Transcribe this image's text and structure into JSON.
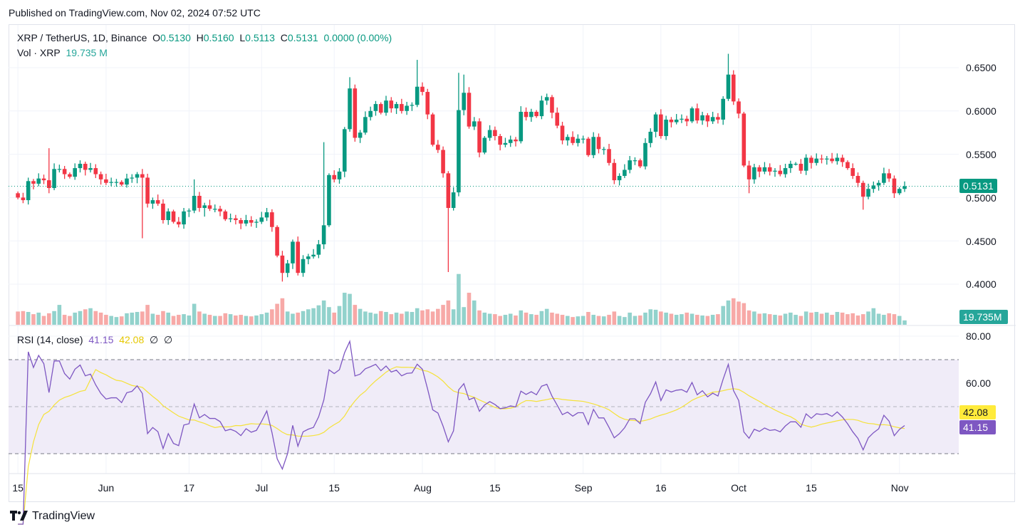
{
  "published": "Published on TradingView.com, Nov 02, 2024 07:52 UTC",
  "legend": {
    "symbol": "XRP / TetherUS, 1D, Binance",
    "o_label": "O",
    "o": "0.5130",
    "h_label": "H",
    "h": "0.5160",
    "l_label": "L",
    "l": "0.5113",
    "c_label": "C",
    "c": "0.5131",
    "change": "0.0000 (0.00%)",
    "vol_label": "Vol · XRP",
    "vol": "19.735 M"
  },
  "rsi_legend": {
    "label": "RSI (14, close)",
    "rsi": "41.15",
    "ma": "42.08",
    "n1": "∅",
    "n2": "∅"
  },
  "price_axis": [
    "0.6500",
    "0.6000",
    "0.5500",
    "0.5000",
    "0.4500",
    "0.4000"
  ],
  "rsi_axis": [
    "80.00",
    "60.00"
  ],
  "last_price_tag": "0.5131",
  "volume_tag": "19.735M",
  "rsi_tag": "41.15",
  "rsi_ma_tag": "42.08",
  "logo_text": "TradingView",
  "colors": {
    "up": "#089981",
    "down": "#F23645",
    "rsi": "#7E57C2",
    "rsi_ma": "#F5E23A",
    "band": "#F0ECF8"
  },
  "chart_data": {
    "type": "candlestick",
    "title": "XRP / TetherUS, 1D, Binance",
    "first_date": "2024-05-15",
    "last_date": "2024-11-02",
    "ylim": [
      0.365,
      0.68
    ],
    "x_ticks": [
      {
        "label": "15",
        "day": 0
      },
      {
        "label": "Jun",
        "day": 17
      },
      {
        "label": "17",
        "day": 33
      },
      {
        "label": "Jul",
        "day": 47
      },
      {
        "label": "15",
        "day": 61
      },
      {
        "label": "Aug",
        "day": 78
      },
      {
        "label": "15",
        "day": 92
      },
      {
        "label": "Sep",
        "day": 109
      },
      {
        "label": "16",
        "day": 124
      },
      {
        "label": "Oct",
        "day": 139
      },
      {
        "label": "15",
        "day": 153
      },
      {
        "label": "Nov",
        "day": 170
      }
    ],
    "first_open": 0.505,
    "close": [
      0.5,
      0.497,
      0.519,
      0.516,
      0.522,
      0.52,
      0.511,
      0.533,
      0.533,
      0.527,
      0.524,
      0.534,
      0.539,
      0.532,
      0.534,
      0.527,
      0.521,
      0.517,
      0.518,
      0.518,
      0.515,
      0.522,
      0.523,
      0.527,
      0.523,
      0.493,
      0.497,
      0.493,
      0.474,
      0.484,
      0.472,
      0.469,
      0.484,
      0.485,
      0.502,
      0.488,
      0.491,
      0.487,
      0.487,
      0.484,
      0.475,
      0.476,
      0.474,
      0.47,
      0.474,
      0.471,
      0.472,
      0.477,
      0.483,
      0.466,
      0.433,
      0.413,
      0.424,
      0.449,
      0.413,
      0.429,
      0.432,
      0.434,
      0.446,
      0.468,
      0.526,
      0.521,
      0.53,
      0.579,
      0.626,
      0.569,
      0.575,
      0.593,
      0.6,
      0.608,
      0.598,
      0.612,
      0.603,
      0.608,
      0.6,
      0.606,
      0.607,
      0.628,
      0.622,
      0.596,
      0.561,
      0.555,
      0.528,
      0.488,
      0.506,
      0.601,
      0.621,
      0.582,
      0.588,
      0.552,
      0.569,
      0.578,
      0.571,
      0.561,
      0.563,
      0.567,
      0.565,
      0.599,
      0.593,
      0.599,
      0.594,
      0.612,
      0.616,
      0.598,
      0.583,
      0.566,
      0.57,
      0.563,
      0.568,
      0.568,
      0.549,
      0.57,
      0.556,
      0.556,
      0.54,
      0.52,
      0.525,
      0.532,
      0.543,
      0.543,
      0.536,
      0.563,
      0.576,
      0.596,
      0.571,
      0.59,
      0.587,
      0.59,
      0.591,
      0.588,
      0.603,
      0.589,
      0.595,
      0.588,
      0.593,
      0.59,
      0.614,
      0.642,
      0.611,
      0.597,
      0.537,
      0.521,
      0.535,
      0.53,
      0.535,
      0.53,
      0.531,
      0.527,
      0.534,
      0.539,
      0.539,
      0.531,
      0.546,
      0.54,
      0.545,
      0.544,
      0.545,
      0.542,
      0.546,
      0.541,
      0.534,
      0.525,
      0.517,
      0.501,
      0.51,
      0.514,
      0.517,
      0.528,
      0.522,
      0.505,
      0.51,
      0.5131
    ],
    "wick_default": 0.005,
    "extremes": {
      "6": [
        0.557,
        null
      ],
      "24": [
        null,
        0.453
      ],
      "34": [
        0.521,
        null
      ],
      "36": [
        null,
        0.478
      ],
      "51": [
        null,
        0.403
      ],
      "59": [
        0.564,
        null
      ],
      "64": [
        0.639,
        null
      ],
      "77": [
        0.659,
        null
      ],
      "83": [
        null,
        0.414
      ],
      "85": [
        0.644,
        null
      ],
      "86": [
        0.642,
        null
      ],
      "137": [
        0.666,
        null
      ],
      "141": [
        null,
        0.505
      ],
      "163": [
        null,
        0.486
      ]
    },
    "volume_millions": [
      60,
      62,
      58,
      48,
      55,
      40,
      52,
      62,
      90,
      45,
      40,
      55,
      62,
      70,
      75,
      62,
      55,
      45,
      40,
      35,
      38,
      52,
      55,
      58,
      60,
      90,
      50,
      45,
      62,
      55,
      40,
      45,
      48,
      42,
      95,
      60,
      50,
      45,
      40,
      40,
      52,
      48,
      42,
      45,
      40,
      38,
      42,
      48,
      55,
      70,
      95,
      120,
      60,
      50,
      55,
      62,
      70,
      75,
      88,
      110,
      80,
      55,
      85,
      145,
      140,
      90,
      72,
      60,
      55,
      50,
      62,
      58,
      48,
      55,
      50,
      60,
      58,
      75,
      65,
      70,
      60,
      72,
      90,
      110,
      70,
      230,
      80,
      145,
      110,
      65,
      55,
      50,
      48,
      40,
      45,
      50,
      42,
      65,
      55,
      48,
      45,
      62,
      72,
      55,
      50,
      45,
      40,
      35,
      38,
      40,
      58,
      45,
      40,
      38,
      45,
      60,
      40,
      35,
      55,
      40,
      42,
      55,
      70,
      68,
      60,
      55,
      50,
      45,
      48,
      55,
      50,
      45,
      42,
      40,
      45,
      48,
      85,
      110,
      120,
      105,
      98,
      65,
      60,
      50,
      52,
      48,
      45,
      42,
      50,
      55,
      45,
      40,
      60,
      55,
      58,
      50,
      55,
      45,
      58,
      55,
      48,
      52,
      42,
      48,
      60,
      75,
      50,
      45,
      52,
      48,
      40,
      19.735
    ],
    "rsi": {
      "length": 14,
      "source": "close",
      "upper_band": 70,
      "lower_band": 30,
      "ylim": [
        20,
        85
      ],
      "last": 41.15,
      "ma_last": 42.08
    }
  }
}
